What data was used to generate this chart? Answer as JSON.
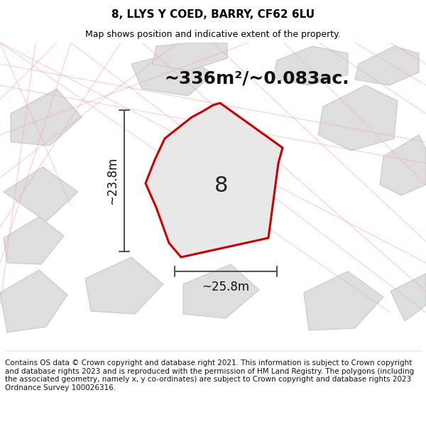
{
  "title": "8, LLYS Y COED, BARRY, CF62 6LU",
  "subtitle": "Map shows position and indicative extent of the property.",
  "area_text": "~336m²/~0.083ac.",
  "width_label": "~25.8m",
  "height_label": "~23.8m",
  "plot_number": "8",
  "footer": "Contains OS data © Crown copyright and database right 2021. This information is subject to Crown copyright and database rights 2023 and is reproduced with the permission of HM Land Registry. The polygons (including the associated geometry, namely x, y co-ordinates) are subject to Crown copyright and database rights 2023 Ordnance Survey 100026316.",
  "bg_color": "#f2f2f2",
  "plot_fill": "#e8e8e8",
  "plot_edge": "#cc0000",
  "road_line_color": "#f5aaaa",
  "building_fill": "#dedede",
  "building_edge": "#c8c8c8",
  "dim_line_color": "#555555",
  "title_fontsize": 11,
  "subtitle_fontsize": 9,
  "area_fontsize": 18,
  "label_fontsize": 12,
  "plot_label_fontsize": 22,
  "footer_fontsize": 7.5
}
